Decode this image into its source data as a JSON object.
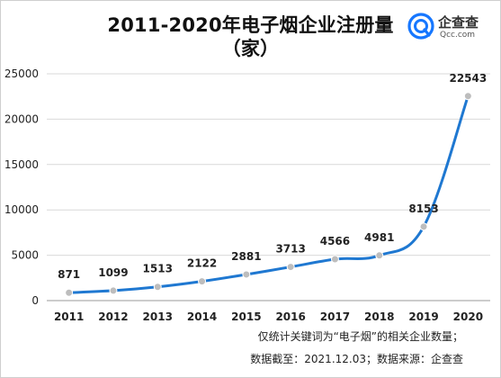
{
  "title_line1": "2011-2020年电子烟企业注册量",
  "title_line2": "（家）",
  "logo": {
    "name": "企查查",
    "url": "Qcc.com",
    "color": "#1677ff"
  },
  "notes": {
    "line1": "仅统计关键词为“电子烟”的相关企业数量；",
    "line2": "数据截至：2021.12.03；数据来源：企查查"
  },
  "chart_data": {
    "type": "line",
    "title": "2011-2020年电子烟企业注册量（家）",
    "xlabel": "",
    "ylabel": "",
    "categories": [
      "2011",
      "2012",
      "2013",
      "2014",
      "2015",
      "2016",
      "2017",
      "2018",
      "2019",
      "2020"
    ],
    "series": [
      {
        "values": [
          871,
          1099,
          1513,
          2122,
          2881,
          3713,
          4566,
          4981,
          8153,
          22543
        ]
      }
    ],
    "ylim": [
      0,
      25000
    ],
    "yticks": [
      0,
      5000,
      10000,
      15000,
      20000,
      25000
    ],
    "data_labels": true,
    "grid": "horizontal",
    "legend": "none",
    "line_color": "#1f78d1",
    "marker_color": "#bdbdbd"
  }
}
